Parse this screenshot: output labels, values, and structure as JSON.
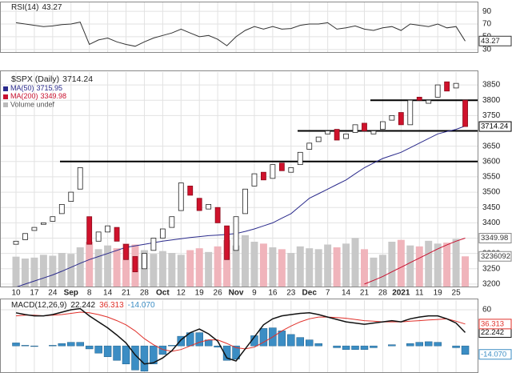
{
  "chart_data": [
    {
      "type": "line",
      "title": "RSI(14)",
      "color": "#333333",
      "values": [
        72,
        70,
        68,
        66,
        67,
        69,
        70,
        73,
        38,
        45,
        48,
        42,
        38,
        35,
        42,
        48,
        52,
        56,
        62,
        56,
        50,
        52,
        46,
        36,
        50,
        60,
        66,
        62,
        66,
        62,
        63,
        68,
        70,
        70,
        72,
        62,
        64,
        67,
        62,
        60,
        64,
        66,
        60,
        70,
        68,
        66,
        70,
        64,
        66,
        43.27
      ],
      "ylim": [
        26,
        104
      ],
      "yticks": [
        30,
        50,
        70,
        90
      ],
      "grid": true
    },
    {
      "type": "candlestick",
      "title": "$SPX (Daily)",
      "categories": [
        "10",
        null,
        "17",
        null,
        "24",
        null,
        "Sep",
        null,
        "8",
        null,
        "14",
        null,
        "21",
        null,
        "28",
        null,
        "Oct",
        null,
        "12",
        null,
        "19",
        null,
        "26",
        null,
        "Nov",
        null,
        "9",
        null,
        "16",
        null,
        "23",
        null,
        "Dec",
        null,
        "7",
        null,
        "14",
        null,
        "21",
        null,
        "28",
        null,
        "2021",
        null,
        "11",
        null,
        "19",
        null,
        "25",
        null
      ],
      "open": [
        3330,
        3345,
        3375,
        3395,
        3405,
        3430,
        3470,
        3510,
        3420,
        3340,
        3370,
        3385,
        3330,
        3290,
        3250,
        3310,
        3350,
        3385,
        3440,
        3520,
        3480,
        3445,
        3450,
        3390,
        3310,
        3430,
        3520,
        3565,
        3545,
        3595,
        3565,
        3590,
        3640,
        3665,
        3690,
        3705,
        3675,
        3695,
        3725,
        3690,
        3705,
        3735,
        3760,
        3720,
        3810,
        3790,
        3810,
        3860,
        3840,
        3800
      ],
      "close": [
        3340,
        3365,
        3385,
        3400,
        3420,
        3460,
        3500,
        3580,
        3330,
        3370,
        3390,
        3340,
        3280,
        3240,
        3300,
        3350,
        3380,
        3420,
        3530,
        3490,
        3440,
        3460,
        3400,
        3280,
        3420,
        3510,
        3560,
        3540,
        3590,
        3570,
        3580,
        3630,
        3660,
        3680,
        3700,
        3670,
        3690,
        3720,
        3700,
        3700,
        3730,
        3750,
        3720,
        3800,
        3800,
        3800,
        3850,
        3830,
        3855,
        3714.24
      ],
      "series": [
        {
          "name": "MA(50)",
          "color": "#2b2b8c",
          "values": [
            3190,
            3200,
            3210,
            3220,
            3230,
            3242,
            3255,
            3268,
            3280,
            3290,
            3300,
            3310,
            3320,
            3325,
            3330,
            3335,
            3340,
            3344,
            3348,
            3352,
            3355,
            3358,
            3360,
            3362,
            3365,
            3372,
            3380,
            3390,
            3400,
            3415,
            3430,
            3455,
            3480,
            3495,
            3510,
            3525,
            3540,
            3560,
            3580,
            3595,
            3610,
            3620,
            3630,
            3645,
            3660,
            3675,
            3690,
            3698,
            3705,
            3715.95
          ]
        },
        {
          "name": "MA(200)",
          "color": "#c8102e",
          "values": [
            null,
            null,
            null,
            null,
            null,
            null,
            null,
            null,
            null,
            null,
            null,
            null,
            null,
            null,
            null,
            null,
            null,
            null,
            null,
            null,
            null,
            null,
            null,
            null,
            null,
            null,
            null,
            null,
            null,
            null,
            null,
            null,
            null,
            null,
            null,
            null,
            null,
            null,
            3200,
            3212,
            3225,
            3240,
            3255,
            3270,
            3285,
            3300,
            3315,
            3328,
            3340,
            3349.98
          ]
        }
      ],
      "volume": {
        "name": "Volume undef",
        "ylim": [
          0,
          6000000
        ],
        "values": [
          3200000,
          3000000,
          3100000,
          3400000,
          3300000,
          3600000,
          3500000,
          4200000,
          4800000,
          4000000,
          4400000,
          4100000,
          4600000,
          4500000,
          3900000,
          3500000,
          3800000,
          3600000,
          3400000,
          3900000,
          4100000,
          3700000,
          4300000,
          5000000,
          4400000,
          5500000,
          4800000,
          4600000,
          4200000,
          4000000,
          3600000,
          4300000,
          4100000,
          4000000,
          4500000,
          4200000,
          4600000,
          5200000,
          4000000,
          3100000,
          3400000,
          4800000,
          5000000,
          4400000,
          4300000,
          4900000,
          4600000,
          4700000,
          5100000,
          3236092
        ]
      },
      "levels": [
        3600,
        3700,
        3800
      ],
      "ylim": [
        3192,
        3892
      ],
      "yticks": [
        3200,
        3250,
        3300,
        3350,
        3400,
        3450,
        3500,
        3550,
        3600,
        3650,
        3750,
        3800,
        3850
      ],
      "grid": true
    },
    {
      "type": "macd",
      "title": "MACD(12,26,9)",
      "series": [
        {
          "color": "#111111",
          "values": [
            55,
            52,
            50,
            50,
            52,
            56,
            60,
            62,
            50,
            40,
            30,
            18,
            5,
            -15,
            -30,
            -28,
            -20,
            -8,
            10,
            22,
            28,
            20,
            8,
            -20,
            -25,
            -5,
            15,
            35,
            45,
            50,
            52,
            54,
            55,
            52,
            48,
            44,
            40,
            38,
            36,
            38,
            40,
            42,
            40,
            45,
            48,
            50,
            50,
            45,
            38,
            22.242
          ]
        },
        {
          "color": "#e0302a",
          "values": [
            50,
            51,
            51,
            50,
            51,
            52,
            54,
            56,
            55,
            52,
            48,
            42,
            35,
            25,
            12,
            2,
            -6,
            -9,
            -6,
            0,
            6,
            10,
            10,
            4,
            -3,
            -5,
            -2,
            6,
            15,
            25,
            33,
            40,
            45,
            48,
            48,
            47,
            46,
            44,
            42,
            41,
            40,
            40,
            40,
            41,
            42,
            43,
            44,
            45,
            41,
            36.313
          ]
        },
        {
          "color": "#3b8dc4",
          "values": [
            5,
            1,
            -1,
            0,
            1,
            4,
            6,
            6,
            -5,
            -12,
            -18,
            -24,
            -30,
            -40,
            -42,
            -30,
            -14,
            1,
            16,
            22,
            22,
            10,
            -2,
            -24,
            -22,
            0,
            17,
            29,
            30,
            25,
            19,
            14,
            10,
            4,
            0,
            -3,
            -6,
            -6,
            -6,
            -3,
            0,
            2,
            0,
            4,
            6,
            7,
            6,
            0,
            -3,
            -14.07
          ],
          "value_labels": [
            null,
            null,
            null,
            null,
            null,
            null,
            null,
            null,
            null,
            null,
            null,
            null,
            null,
            null,
            null,
            null,
            null,
            null,
            null,
            null,
            null,
            null,
            null,
            null,
            null,
            null,
            null,
            null,
            null,
            null,
            null,
            null,
            null,
            null,
            null,
            null,
            null,
            null,
            null,
            null,
            null,
            null,
            null,
            null,
            null,
            null,
            null,
            null,
            null,
            "-14.070"
          ]
        }
      ],
      "ylim": [
        -45,
        76
      ],
      "yticks": [
        60
      ],
      "grid": true
    }
  ]
}
